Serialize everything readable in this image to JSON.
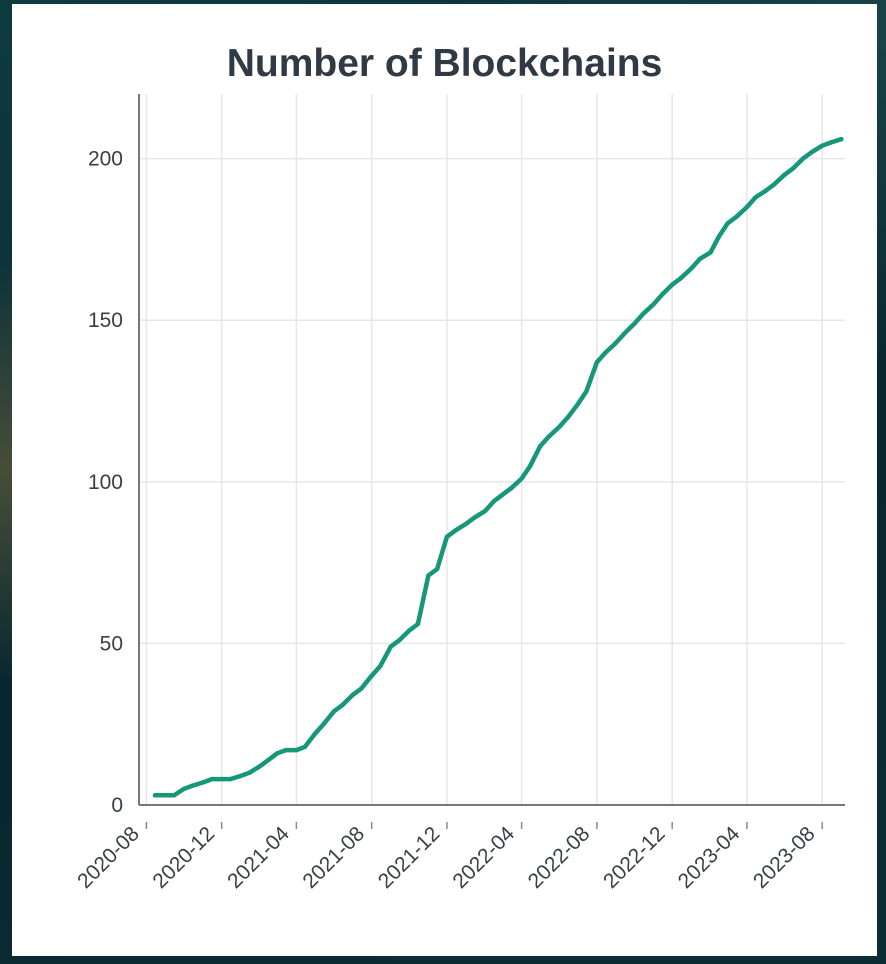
{
  "chart_data": {
    "type": "line",
    "title": "Number of Blockchains",
    "xlabel": "",
    "ylabel": "",
    "x_tick_labels": [
      "2020-08",
      "2020-12",
      "2021-04",
      "2021-08",
      "2021-12",
      "2022-04",
      "2022-08",
      "2022-12",
      "2023-04",
      "2023-08"
    ],
    "y_tick_labels": [
      "0",
      "50",
      "100",
      "150",
      "200"
    ],
    "ylim": [
      0,
      220
    ],
    "xlim": [
      "2020-07-20",
      "2023-09-07"
    ],
    "grid": true,
    "line_color": "#16967a",
    "series": [
      {
        "x": [
          "2020-08-15",
          "2020-09-01",
          "2020-09-15",
          "2020-10-01",
          "2020-10-15",
          "2020-11-01",
          "2020-11-15",
          "2020-12-01",
          "2020-12-15",
          "2021-01-01",
          "2021-01-15",
          "2021-02-01",
          "2021-02-15",
          "2021-03-01",
          "2021-03-15",
          "2021-04-01",
          "2021-04-15",
          "2021-05-01",
          "2021-05-15",
          "2021-06-01",
          "2021-06-15",
          "2021-07-01",
          "2021-07-15",
          "2021-08-01",
          "2021-08-15",
          "2021-09-01",
          "2021-09-15",
          "2021-10-01",
          "2021-10-15",
          "2021-11-01",
          "2021-11-15",
          "2021-12-01",
          "2021-12-15",
          "2022-01-01",
          "2022-01-15",
          "2022-02-01",
          "2022-02-15",
          "2022-03-01",
          "2022-03-15",
          "2022-04-01",
          "2022-04-15",
          "2022-05-01",
          "2022-05-15",
          "2022-06-01",
          "2022-06-15",
          "2022-07-01",
          "2022-07-15",
          "2022-08-01",
          "2022-08-15",
          "2022-09-01",
          "2022-09-15",
          "2022-10-01",
          "2022-10-15",
          "2022-11-01",
          "2022-11-15",
          "2022-12-01",
          "2022-12-15",
          "2023-01-01",
          "2023-01-15",
          "2023-02-01",
          "2023-02-15",
          "2023-03-01",
          "2023-03-15",
          "2023-04-01",
          "2023-04-15",
          "2023-05-01",
          "2023-05-15",
          "2023-06-01",
          "2023-06-15",
          "2023-07-01",
          "2023-07-15",
          "2023-08-01",
          "2023-08-15",
          "2023-09-01"
        ],
        "values": [
          3,
          3,
          3,
          5,
          6,
          7,
          8,
          8,
          8,
          9,
          10,
          12,
          14,
          16,
          17,
          17,
          18,
          22,
          25,
          29,
          31,
          34,
          36,
          40,
          43,
          49,
          51,
          54,
          56,
          71,
          73,
          83,
          85,
          87,
          89,
          91,
          94,
          96,
          98,
          101,
          105,
          111,
          114,
          117,
          120,
          124,
          128,
          137,
          140,
          143,
          146,
          149,
          152,
          155,
          158,
          161,
          163,
          166,
          169,
          171,
          176,
          180,
          182,
          185,
          188,
          190,
          192,
          195,
          197,
          200,
          202,
          204,
          205,
          206
        ]
      }
    ]
  }
}
